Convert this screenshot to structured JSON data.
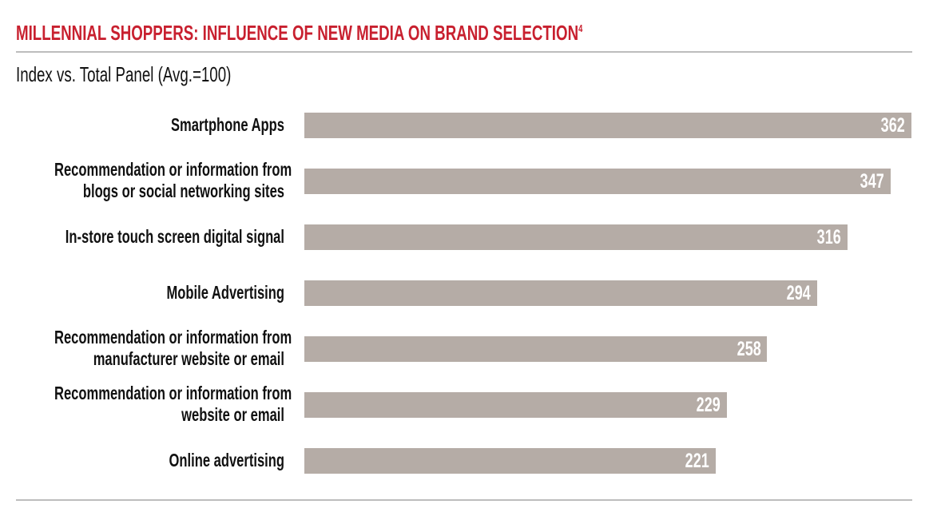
{
  "chart_data": {
    "type": "bar",
    "orientation": "horizontal",
    "title": "MILLENNIAL SHOPPERS: INFLUENCE OF NEW MEDIA ON BRAND SELECTION",
    "title_footnote": "4",
    "subtitle": "Index vs. Total Panel (Avg.=100)",
    "categories": [
      [
        "Smartphone Apps"
      ],
      [
        "Recommendation or information from",
        "blogs or social networking sites"
      ],
      [
        "In-store touch screen digital signal"
      ],
      [
        "Mobile Advertising"
      ],
      [
        "Recommendation or information from",
        "manufacturer website or email"
      ],
      [
        "Recommendation or information from",
        "website or email"
      ],
      [
        "Online  advertising"
      ]
    ],
    "values": [
      362,
      347,
      316,
      294,
      258,
      229,
      221
    ],
    "value_labels": [
      "362",
      "347",
      "316",
      "294",
      "258",
      "229",
      "221"
    ],
    "grid": false,
    "colors": {
      "bar": "#b5aca6",
      "title": "#c8202f",
      "value_text": "#ffffff"
    }
  }
}
